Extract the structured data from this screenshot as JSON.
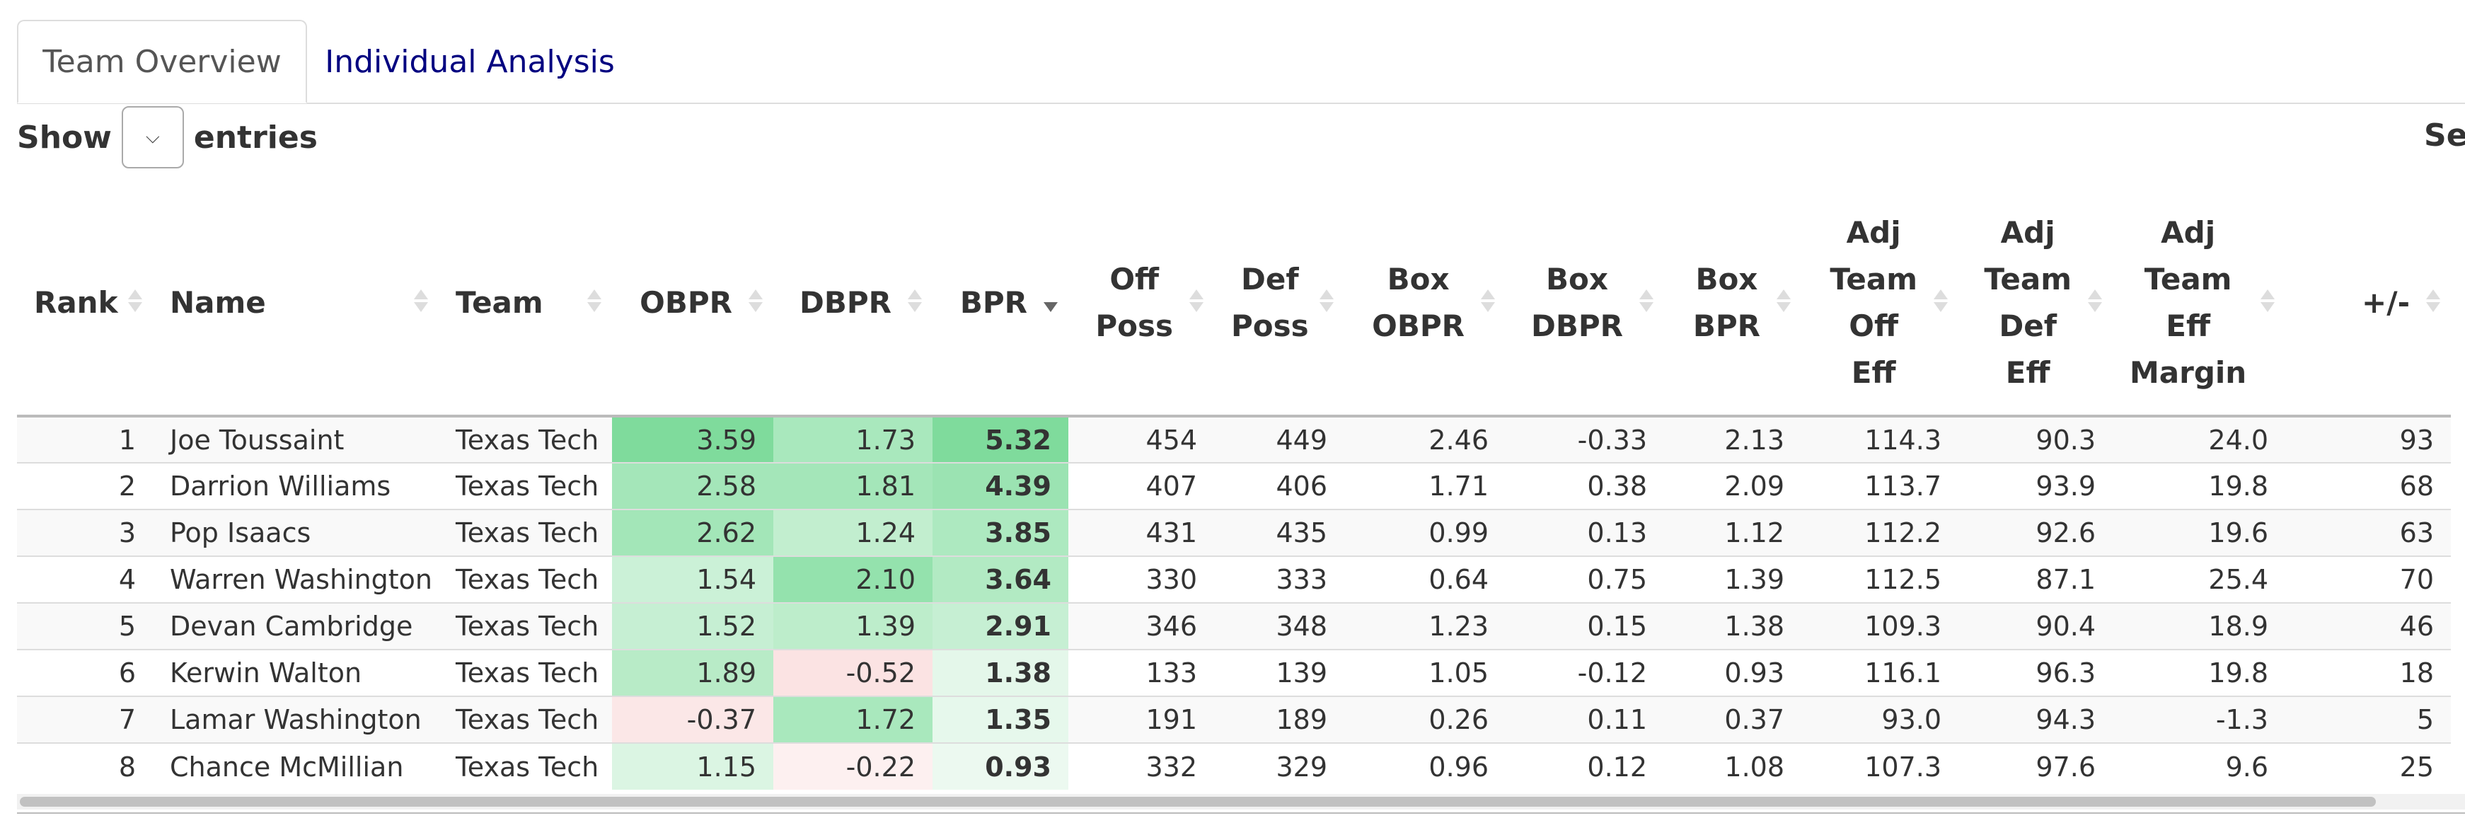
{
  "tabs": [
    {
      "label": "Team Overview",
      "active": true
    },
    {
      "label": "Individual Analysis",
      "active": false
    }
  ],
  "controls": {
    "show_label": "Show",
    "entries_label": "entries",
    "search_label": "Sea"
  },
  "colors": {
    "accent": "#000080",
    "positive_strong": "#7fdb9c",
    "negative_light": "#fde6e6"
  },
  "table": {
    "columns": [
      {
        "key": "rank",
        "label": "Rank",
        "align": "right",
        "sorted": false
      },
      {
        "key": "name",
        "label": "Name",
        "align": "left",
        "sorted": false
      },
      {
        "key": "team",
        "label": "Team",
        "align": "left",
        "sorted": false
      },
      {
        "key": "obpr",
        "label": "OBPR",
        "align": "right",
        "sorted": false
      },
      {
        "key": "dbpr",
        "label": "DBPR",
        "align": "right",
        "sorted": false
      },
      {
        "key": "bpr",
        "label": "BPR",
        "align": "right",
        "sorted": true,
        "direction": "descending"
      },
      {
        "key": "off_poss",
        "label": "Off Poss",
        "align": "right",
        "sorted": false
      },
      {
        "key": "def_poss",
        "label": "Def Poss",
        "align": "right",
        "sorted": false
      },
      {
        "key": "box_obpr",
        "label": "Box OBPR",
        "align": "right",
        "sorted": false
      },
      {
        "key": "box_dbpr",
        "label": "Box DBPR",
        "align": "right",
        "sorted": false
      },
      {
        "key": "box_bpr",
        "label": "Box BPR",
        "align": "right",
        "sorted": false
      },
      {
        "key": "adj_off",
        "label": "Adj Team Off Eff",
        "align": "right",
        "sorted": false
      },
      {
        "key": "adj_def",
        "label": "Adj Team Def Eff",
        "align": "right",
        "sorted": false
      },
      {
        "key": "adj_margin",
        "label": "Adj Team Eff Margin",
        "align": "right",
        "sorted": false
      },
      {
        "key": "pm",
        "label": "+/-",
        "align": "right",
        "sorted": false
      }
    ],
    "rows": [
      {
        "rank": "1",
        "name": "Joe Toussaint",
        "team": "Texas Tech",
        "obpr": "3.59",
        "dbpr": "1.73",
        "bpr": "5.32",
        "off_poss": "454",
        "def_poss": "449",
        "box_obpr": "2.46",
        "box_dbpr": "-0.33",
        "box_bpr": "2.13",
        "adj_off": "114.3",
        "adj_def": "90.3",
        "adj_margin": "24.0",
        "pm": "93",
        "shade": {
          "obpr": "#7fdb9c",
          "dbpr": "#a9e8bd",
          "bpr": "#7fdb9c"
        }
      },
      {
        "rank": "2",
        "name": "Darrion Williams",
        "team": "Texas Tech",
        "obpr": "2.58",
        "dbpr": "1.81",
        "bpr": "4.39",
        "off_poss": "407",
        "def_poss": "406",
        "box_obpr": "1.71",
        "box_dbpr": "0.38",
        "box_bpr": "2.09",
        "adj_off": "113.7",
        "adj_def": "93.9",
        "adj_margin": "19.8",
        "pm": "68",
        "shade": {
          "obpr": "#a4e6b9",
          "dbpr": "#a4e6b9",
          "bpr": "#9be3b2"
        }
      },
      {
        "rank": "3",
        "name": "Pop Isaacs",
        "team": "Texas Tech",
        "obpr": "2.62",
        "dbpr": "1.24",
        "bpr": "3.85",
        "off_poss": "431",
        "def_poss": "435",
        "box_obpr": "0.99",
        "box_dbpr": "0.13",
        "box_bpr": "1.12",
        "adj_off": "112.2",
        "adj_def": "92.6",
        "adj_margin": "19.6",
        "pm": "63",
        "shade": {
          "obpr": "#a3e6b8",
          "dbpr": "#c2eecf",
          "bpr": "#ade9c0"
        }
      },
      {
        "rank": "4",
        "name": "Warren Washington",
        "team": "Texas Tech",
        "obpr": "1.54",
        "dbpr": "2.10",
        "bpr": "3.64",
        "off_poss": "330",
        "def_poss": "333",
        "box_obpr": "0.64",
        "box_dbpr": "0.75",
        "box_bpr": "1.39",
        "adj_off": "112.5",
        "adj_def": "87.1",
        "adj_margin": "25.4",
        "pm": "70",
        "shade": {
          "obpr": "#cbf1d7",
          "dbpr": "#94e2ad",
          "bpr": "#b2eac3"
        }
      },
      {
        "rank": "5",
        "name": "Devan Cambridge",
        "team": "Texas Tech",
        "obpr": "1.52",
        "dbpr": "1.39",
        "bpr": "2.91",
        "off_poss": "346",
        "def_poss": "348",
        "box_obpr": "1.23",
        "box_dbpr": "0.15",
        "box_bpr": "1.38",
        "adj_off": "109.3",
        "adj_def": "90.4",
        "adj_margin": "18.9",
        "pm": "46",
        "shade": {
          "obpr": "#c6efd3",
          "dbpr": "#bdedcb",
          "bpr": "#c6efd3"
        }
      },
      {
        "rank": "6",
        "name": "Kerwin Walton",
        "team": "Texas Tech",
        "obpr": "1.89",
        "dbpr": "-0.52",
        "bpr": "1.38",
        "off_poss": "133",
        "def_poss": "139",
        "box_obpr": "1.05",
        "box_dbpr": "-0.12",
        "box_bpr": "0.93",
        "adj_off": "116.1",
        "adj_def": "96.3",
        "adj_margin": "19.8",
        "pm": "18",
        "shade": {
          "obpr": "#b8ebc7",
          "dbpr": "#fbe3e3",
          "bpr": "#e4f7ea"
        }
      },
      {
        "rank": "7",
        "name": "Lamar Washington",
        "team": "Texas Tech",
        "obpr": "-0.37",
        "dbpr": "1.72",
        "bpr": "1.35",
        "off_poss": "191",
        "def_poss": "189",
        "box_obpr": "0.26",
        "box_dbpr": "0.11",
        "box_bpr": "0.37",
        "adj_off": "93.0",
        "adj_def": "94.3",
        "adj_margin": "-1.3",
        "pm": "5",
        "shade": {
          "obpr": "#fbe7e7",
          "dbpr": "#a9e8bd",
          "bpr": "#e6f8ec"
        }
      },
      {
        "rank": "8",
        "name": "Chance McMillian",
        "team": "Texas Tech",
        "obpr": "1.15",
        "dbpr": "-0.22",
        "bpr": "0.93",
        "off_poss": "332",
        "def_poss": "329",
        "box_obpr": "0.96",
        "box_dbpr": "0.12",
        "box_bpr": "1.08",
        "adj_off": "107.3",
        "adj_def": "97.6",
        "adj_margin": "9.6",
        "pm": "25",
        "shade": {
          "obpr": "#dbf5e3",
          "dbpr": "#fdf0f0",
          "bpr": "#ecf9f0"
        }
      }
    ]
  }
}
